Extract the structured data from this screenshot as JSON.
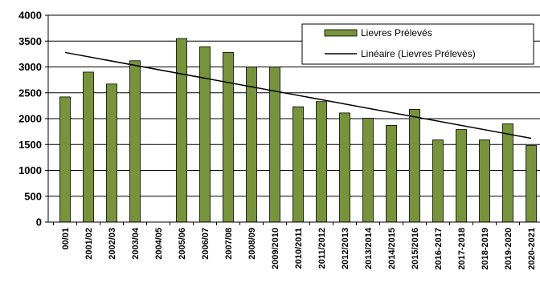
{
  "chart_data": {
    "type": "bar",
    "categories": [
      "00/01",
      "2001/02",
      "2002/03",
      "2003/04",
      "2004/05",
      "2005/06",
      "2006/07",
      "2007/08",
      "2008/09",
      "2009/2010",
      "2010/2011",
      "2011/2012",
      "2012/2013",
      "2013/2014",
      "2014/2015",
      "2015/2016",
      "2016-2017",
      "2017-2018",
      "2018-2019",
      "2019-2020",
      "2020-2021"
    ],
    "series": [
      {
        "name": "Lievres Prélevés",
        "values": [
          2420,
          2900,
          2670,
          3120,
          null,
          3550,
          3390,
          3280,
          3000,
          3000,
          2230,
          2330,
          2110,
          2010,
          1870,
          2180,
          1590,
          1790,
          1590,
          1900,
          1480
        ],
        "color": "#77933c"
      }
    ],
    "trendline": {
      "name": "Linéaire (Lievres Prélevés)",
      "start": 3280,
      "end": 1620,
      "color": "#000000"
    },
    "title": "",
    "xlabel": "",
    "ylabel": "",
    "ylim": [
      0,
      4000
    ],
    "yticks": [
      0,
      500,
      1000,
      1500,
      2000,
      2500,
      3000,
      3500,
      4000
    ],
    "grid": true,
    "legend_position": "top-right"
  }
}
